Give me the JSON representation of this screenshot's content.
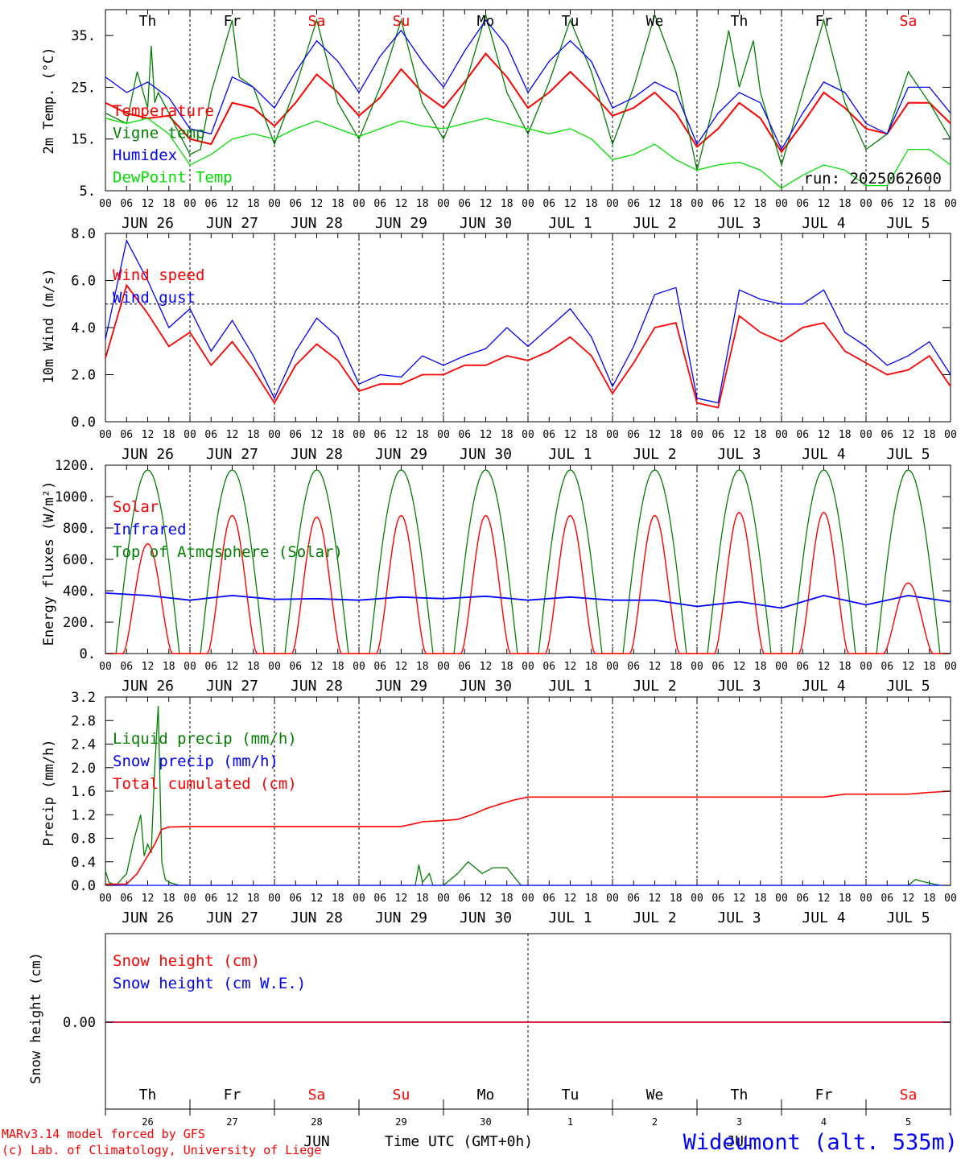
{
  "run_label": "run: 2025062600",
  "weekdays": [
    {
      "label": "Th",
      "color": "#000000"
    },
    {
      "label": "Fr",
      "color": "#000000"
    },
    {
      "label": "Sa",
      "color": "#ff0000"
    },
    {
      "label": "Su",
      "color": "#ff0000"
    },
    {
      "label": "Mo",
      "color": "#000000"
    },
    {
      "label": "Tu",
      "color": "#000000"
    },
    {
      "label": "We",
      "color": "#000000"
    },
    {
      "label": "Th",
      "color": "#000000"
    },
    {
      "label": "Fr",
      "color": "#000000"
    },
    {
      "label": "Sa",
      "color": "#ff0000"
    }
  ],
  "hour_ticks": [
    "00",
    "06",
    "12",
    "18"
  ],
  "day_labels": [
    "JUN 26",
    "JUN 27",
    "JUN 28",
    "JUN 29",
    "JUN 30",
    "JUL  1",
    "JUL  2",
    "JUL  3",
    "JUL  4",
    "JUL  5"
  ],
  "bottom_days": [
    "26",
    "27",
    "28",
    "29",
    "30",
    "1",
    "2",
    "3",
    "4",
    "5"
  ],
  "bottom_month_jun": "JUN",
  "bottom_month_jul": "JUL",
  "time_axis_label": "Time UTC (GMT+0h)",
  "credit_line1": "MARv3.14 model forced by GFS",
  "credit_line2": "(c) Lab. of Climatology, University of Liege",
  "station": "Wideumont (alt. 535m)",
  "colors": {
    "red": "#ff0000",
    "green": "#007f00",
    "blue": "#0000ff",
    "lightgreen": "#00e000",
    "black": "#000000"
  },
  "chart_data": [
    {
      "type": "line",
      "ylabel": "2m Temp. (°C)",
      "ylim": [
        5,
        40
      ],
      "yticks": [
        "35.",
        "25.",
        "15.",
        "5."
      ],
      "ytick_values": [
        35,
        25,
        15,
        5
      ],
      "x_unit": "hours since Jun 26 00 UTC",
      "series": [
        {
          "name": "Temperature",
          "color": "#ff0000",
          "x": [
            0,
            6,
            12,
            18,
            24,
            30,
            36,
            42,
            48,
            54,
            60,
            66,
            72,
            78,
            84,
            90,
            96,
            102,
            108,
            114,
            120,
            126,
            132,
            138,
            144,
            150,
            156,
            162,
            168,
            174,
            180,
            186,
            192,
            198,
            204,
            210,
            216,
            222,
            228,
            234,
            240
          ],
          "y": [
            22,
            20,
            19,
            19.5,
            15,
            14,
            22,
            21,
            17.5,
            22,
            27.5,
            24,
            19.5,
            23,
            28.5,
            24,
            21,
            26,
            31.5,
            27,
            21,
            24,
            28,
            24,
            19.5,
            21,
            24,
            20,
            13.5,
            17,
            22,
            19,
            12.5,
            18,
            24,
            21,
            17,
            16,
            22,
            22,
            18
          ]
        },
        {
          "name": "Vigne temp",
          "color": "#007f00",
          "x": [
            0,
            6,
            9,
            12,
            13,
            14,
            15,
            18,
            24,
            27,
            30,
            36,
            38,
            42,
            48,
            54,
            60,
            66,
            72,
            78,
            84,
            90,
            96,
            102,
            108,
            114,
            120,
            126,
            132,
            138,
            144,
            150,
            156,
            162,
            168,
            174,
            177,
            180,
            184,
            186,
            192,
            198,
            204,
            210,
            216,
            222,
            228,
            234,
            240
          ],
          "y": [
            20,
            18,
            28,
            21,
            33,
            22,
            24,
            20,
            12,
            13,
            24,
            38,
            27,
            25,
            14,
            25,
            38,
            22,
            15,
            25,
            38,
            22,
            15,
            25,
            39,
            24,
            16,
            26,
            38,
            28,
            14,
            25,
            39,
            28,
            9,
            25,
            36,
            25,
            34,
            24,
            10,
            24,
            38,
            22,
            13,
            16,
            28,
            22,
            15
          ]
        },
        {
          "name": "Humidex",
          "color": "#0000ff",
          "x": [
            0,
            6,
            12,
            18,
            24,
            30,
            36,
            42,
            48,
            54,
            60,
            66,
            72,
            78,
            84,
            90,
            96,
            102,
            108,
            114,
            120,
            126,
            132,
            138,
            144,
            150,
            156,
            162,
            168,
            174,
            180,
            186,
            192,
            198,
            204,
            210,
            216,
            222,
            228,
            234,
            240
          ],
          "y": [
            27,
            24,
            26,
            23,
            17,
            16,
            27,
            25,
            21,
            28,
            34,
            30,
            24,
            31,
            36,
            30,
            25,
            32,
            38,
            33,
            24,
            30,
            34,
            30,
            21,
            23,
            26,
            24,
            14,
            20,
            24,
            22,
            13,
            20,
            26,
            24,
            18,
            16,
            25,
            25,
            20
          ]
        },
        {
          "name": "DewPoint Temp",
          "color": "#00e000",
          "x": [
            0,
            6,
            12,
            18,
            24,
            30,
            36,
            42,
            48,
            54,
            60,
            66,
            72,
            78,
            84,
            90,
            96,
            102,
            108,
            114,
            120,
            126,
            132,
            138,
            144,
            150,
            156,
            162,
            168,
            174,
            180,
            186,
            192,
            198,
            204,
            210,
            216,
            222,
            228,
            234,
            240
          ],
          "y": [
            19,
            18,
            19,
            16,
            10,
            12,
            15,
            16,
            15,
            17,
            18.5,
            17,
            15.5,
            17,
            18.5,
            17.5,
            17,
            18,
            19,
            18,
            17,
            16,
            17,
            15,
            11,
            12,
            14,
            11,
            9,
            10,
            10.5,
            9,
            5.5,
            8,
            10,
            9,
            6,
            6,
            13,
            13,
            10
          ]
        }
      ]
    },
    {
      "type": "line",
      "ylabel": "10m Wind (m/s)",
      "ylim": [
        0,
        8
      ],
      "yticks": [
        "8.0",
        "6.0",
        "4.0",
        "2.0",
        "0.0"
      ],
      "ytick_values": [
        8,
        6,
        4,
        2,
        0
      ],
      "reference_line": 5,
      "series": [
        {
          "name": "Wind speed",
          "color": "#ff0000",
          "x": [
            0,
            6,
            12,
            18,
            24,
            30,
            36,
            42,
            48,
            54,
            60,
            66,
            72,
            78,
            84,
            90,
            96,
            102,
            108,
            114,
            120,
            126,
            132,
            138,
            144,
            150,
            156,
            162,
            168,
            174,
            180,
            186,
            192,
            198,
            204,
            210,
            216,
            222,
            228,
            234,
            240
          ],
          "y": [
            2.7,
            5.8,
            4.6,
            3.2,
            3.8,
            2.4,
            3.4,
            2.2,
            0.8,
            2.4,
            3.3,
            2.6,
            1.3,
            1.6,
            1.6,
            2.0,
            2.0,
            2.4,
            2.4,
            2.8,
            2.6,
            3.0,
            3.6,
            2.8,
            1.2,
            2.5,
            4.0,
            4.2,
            0.8,
            0.6,
            4.5,
            3.8,
            3.4,
            4.0,
            4.2,
            3.0,
            2.5,
            2.0,
            2.2,
            2.8,
            1.5
          ]
        },
        {
          "name": "Wind gust",
          "color": "#0000ff",
          "x": [
            0,
            6,
            12,
            18,
            24,
            30,
            36,
            42,
            48,
            54,
            60,
            66,
            72,
            78,
            84,
            90,
            96,
            102,
            108,
            114,
            120,
            126,
            132,
            138,
            144,
            150,
            156,
            162,
            168,
            174,
            180,
            186,
            192,
            198,
            204,
            210,
            216,
            222,
            228,
            234,
            240
          ],
          "y": [
            3.5,
            7.7,
            6.0,
            4.0,
            4.8,
            3.0,
            4.3,
            2.8,
            1.0,
            3.0,
            4.4,
            3.6,
            1.6,
            2.0,
            1.9,
            2.8,
            2.4,
            2.8,
            3.1,
            4.0,
            3.2,
            4.0,
            4.8,
            3.6,
            1.5,
            3.2,
            5.4,
            5.7,
            1.0,
            0.8,
            5.6,
            5.2,
            5.0,
            5.0,
            5.6,
            3.8,
            3.2,
            2.4,
            2.8,
            3.4,
            2.0
          ]
        }
      ]
    },
    {
      "type": "line",
      "ylabel": "Energy fluxes (W/m²)",
      "ylim": [
        0,
        1200
      ],
      "yticks": [
        "1200.",
        "1000.",
        "800.",
        "600.",
        "400.",
        "200.",
        "0."
      ],
      "ytick_values": [
        1200,
        1000,
        800,
        600,
        400,
        200,
        0
      ],
      "series": [
        {
          "name": "Solar",
          "color": "#ff0000",
          "solar_peaks": [
            700,
            880,
            870,
            880,
            880,
            880,
            880,
            900,
            900,
            450
          ]
        },
        {
          "name": "Infrared",
          "color": "#0000ff",
          "x": [
            0,
            12,
            24,
            36,
            48,
            60,
            72,
            84,
            96,
            108,
            120,
            132,
            144,
            156,
            168,
            180,
            192,
            204,
            216,
            228,
            240
          ],
          "y": [
            385,
            370,
            340,
            370,
            345,
            350,
            340,
            360,
            350,
            365,
            340,
            360,
            340,
            340,
            300,
            330,
            290,
            370,
            310,
            370,
            330
          ]
        },
        {
          "name": "Top of Atmosphere (Solar)",
          "color": "#007f00",
          "toa_peak": 1170
        }
      ]
    },
    {
      "type": "line",
      "ylabel": "Precip (mm/h)",
      "ylim": [
        0,
        3.2
      ],
      "yticks": [
        "3.2",
        "2.8",
        "2.4",
        "2.0",
        "1.6",
        "1.2",
        "0.8",
        "0.4",
        "0.0"
      ],
      "ytick_values": [
        3.2,
        2.8,
        2.4,
        2.0,
        1.6,
        1.2,
        0.8,
        0.4,
        0.0
      ],
      "series": [
        {
          "name": "Liquid precip (mm/h)",
          "color": "#007f00",
          "x": [
            0,
            1,
            3,
            6,
            8,
            10,
            11,
            12,
            13,
            14,
            15,
            16,
            17,
            18,
            21,
            24,
            88,
            89,
            90,
            92,
            93,
            96,
            100,
            103,
            107,
            110,
            114,
            118,
            120,
            121,
            228,
            230,
            233,
            237
          ],
          "y": [
            0.25,
            0.05,
            0,
            0.2,
            0.75,
            1.2,
            0.5,
            0.7,
            0.55,
            2.0,
            3.05,
            0.4,
            0.1,
            0.05,
            0,
            0,
            0,
            0.35,
            0.05,
            0.2,
            0,
            0,
            0.2,
            0.4,
            0.2,
            0.3,
            0.3,
            0,
            0,
            0,
            0,
            0.1,
            0.05,
            0
          ]
        },
        {
          "name": "Snow precip (mm/h)",
          "color": "#0000ff",
          "x": [
            0,
            240
          ],
          "y": [
            0,
            0
          ]
        },
        {
          "name": "Total cumulated (cm)",
          "color": "#ff0000",
          "x": [
            0,
            6,
            9,
            12,
            14,
            16,
            18,
            24,
            40,
            48,
            60,
            72,
            84,
            88,
            90,
            96,
            100,
            104,
            108,
            112,
            116,
            120,
            132,
            144,
            156,
            168,
            180,
            192,
            204,
            210,
            216,
            228,
            234,
            240
          ],
          "y": [
            0.02,
            0.02,
            0.2,
            0.5,
            0.7,
            0.95,
            0.99,
            1.0,
            1.0,
            1.0,
            1.0,
            1.0,
            1.0,
            1.05,
            1.08,
            1.1,
            1.12,
            1.2,
            1.3,
            1.38,
            1.45,
            1.5,
            1.5,
            1.5,
            1.5,
            1.5,
            1.5,
            1.5,
            1.5,
            1.55,
            1.55,
            1.55,
            1.58,
            1.6
          ]
        }
      ]
    },
    {
      "type": "line",
      "ylabel": "Snow height (cm)",
      "yticks": [
        "0.00"
      ],
      "ytick_values": [
        0
      ],
      "series": [
        {
          "name": "Snow height (cm)",
          "color": "#ff0000",
          "x": [
            0,
            240
          ],
          "y": [
            0,
            0
          ]
        },
        {
          "name": "Snow height (cm W.E.)",
          "color": "#0000ff",
          "x": [
            0,
            240
          ],
          "y": [
            0,
            0
          ]
        }
      ]
    }
  ]
}
